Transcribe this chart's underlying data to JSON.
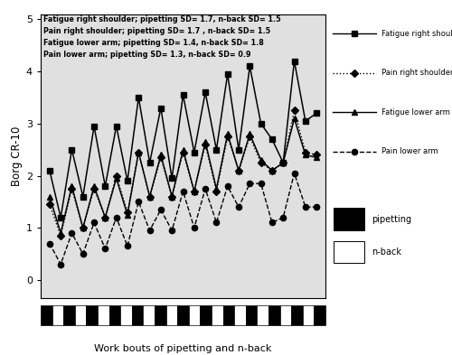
{
  "title_annotations": [
    "Fatigue right shoulder; pipetting SD= 1.7, n-back SD= 1.5",
    "Pain right shoulder; pipetting SD= 1.7 , n-back SD= 1.5",
    "Fatigue lower arm; pipetting SD= 1.4, n-back SD= 1.8",
    "Pain lower arm; pipetting SD= 1.3, n-back SD= 0.9"
  ],
  "ylabel": "Borg CR-10",
  "xlabel": "Work bouts of pipetting and n-back",
  "ylim": [
    -0.35,
    5.1
  ],
  "yticks": [
    0,
    1,
    2,
    3,
    4,
    5
  ],
  "bg_color": "#e0e0e0",
  "fatigue_right_shoulder": [
    2.1,
    1.2,
    2.5,
    1.6,
    2.95,
    1.8,
    2.95,
    1.9,
    3.5,
    2.25,
    3.3,
    1.95,
    3.55,
    2.45,
    3.6,
    2.5,
    3.95,
    2.5,
    4.1,
    3.0,
    2.7,
    2.25,
    4.2,
    3.05,
    3.2
  ],
  "pain_right_shoulder": [
    1.45,
    0.85,
    1.75,
    1.0,
    1.75,
    1.2,
    2.0,
    1.3,
    2.45,
    1.6,
    2.35,
    1.6,
    2.45,
    1.7,
    2.6,
    1.7,
    2.75,
    2.1,
    2.75,
    2.25,
    2.1,
    2.25,
    3.25,
    2.45,
    2.4
  ],
  "fatigue_lower_arm": [
    1.6,
    0.9,
    1.8,
    1.0,
    1.8,
    1.2,
    1.95,
    1.25,
    2.45,
    1.6,
    2.4,
    1.6,
    2.5,
    1.7,
    2.65,
    1.75,
    2.8,
    2.1,
    2.8,
    2.3,
    2.1,
    2.25,
    3.1,
    2.4,
    2.35
  ],
  "pain_lower_arm": [
    0.7,
    0.3,
    0.9,
    0.5,
    1.1,
    0.6,
    1.2,
    0.65,
    1.5,
    0.95,
    1.35,
    0.95,
    1.7,
    1.0,
    1.75,
    1.1,
    1.8,
    1.4,
    1.85,
    1.85,
    1.1,
    1.2,
    2.05,
    1.4,
    1.4
  ],
  "n_points": 25,
  "bottom_bar_pattern": [
    1,
    0,
    1,
    0,
    1,
    0,
    1,
    0,
    1,
    0,
    1,
    0,
    1,
    0,
    1,
    0,
    1,
    0,
    1,
    0,
    1,
    0,
    1,
    0,
    1
  ],
  "legend_entries": [
    {
      "marker": "s",
      "ls": "-",
      "label": "Fatigue right shoulder"
    },
    {
      "marker": "D",
      "ls": ":",
      "label": "Pain right shoulder"
    },
    {
      "marker": "^",
      "ls": "-",
      "label": "Fatigue lower arm"
    },
    {
      "marker": "o",
      "ls": "--",
      "label": "Pain lower arm"
    }
  ]
}
